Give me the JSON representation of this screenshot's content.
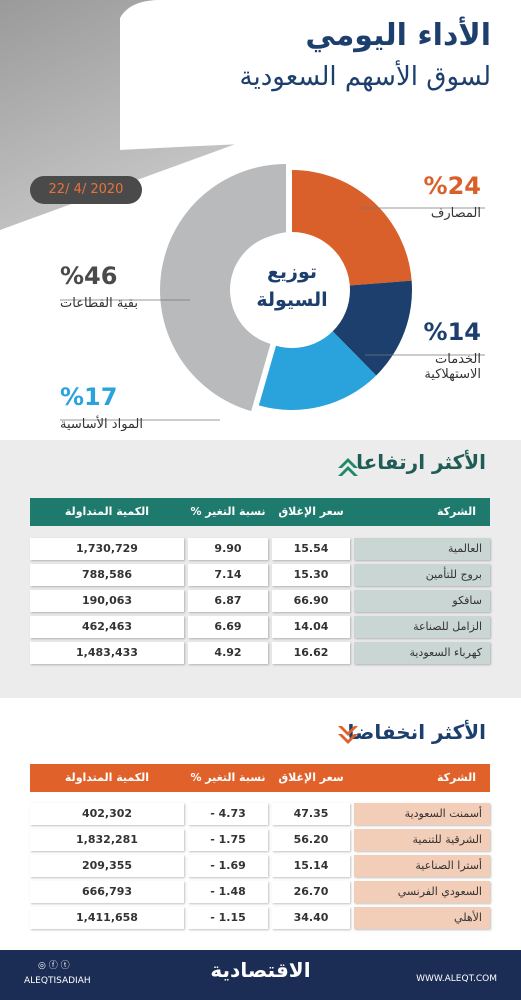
{
  "header": {
    "title": "الأداء اليومي",
    "subtitle": "لسوق الأسهم السعودية",
    "date": "22/ 4/ 2020"
  },
  "chart_data": {
    "type": "pie",
    "donut": true,
    "center_label": [
      "توزيع",
      "السيولة"
    ],
    "categories": [
      "المصارف",
      "الخدمات الاستهلاكية",
      "المواد الأساسية",
      "بقية القطاعات"
    ],
    "values": [
      24,
      14,
      17,
      46
    ],
    "value_labels": [
      "%24",
      "%14",
      "%17",
      "%46"
    ],
    "colors": [
      "#d9602a",
      "#1d3f6d",
      "#2aa3dc",
      "#b9babc"
    ]
  },
  "gainers": {
    "title": "الأكثر ارتفاعا",
    "columns": [
      "الشركة",
      "سعر الإغلاق",
      "نسبة التغير %",
      "الكمية المتداولة"
    ],
    "rows": [
      [
        "العالمية",
        "15.54",
        "9.90",
        "1,730,729"
      ],
      [
        "بروج للتأمين",
        "15.30",
        "7.14",
        "788,586"
      ],
      [
        "سافكو",
        "66.90",
        "6.87",
        "190,063"
      ],
      [
        "الزامل للصناعة",
        "14.04",
        "6.69",
        "462,463"
      ],
      [
        "كهرباء السعودية",
        "16.62",
        "4.92",
        "1,483,433"
      ]
    ]
  },
  "losers": {
    "title": "الأكثر انخفاضا",
    "columns": [
      "الشركة",
      "سعر الإغلاق",
      "نسبة التغير %",
      "الكمية المتداولة"
    ],
    "rows": [
      [
        "أسمنت السعودية",
        "47.35",
        "- 4.73",
        "402,302"
      ],
      [
        "الشرقية للتنمية",
        "56.20",
        "- 1.75",
        "1,832,281"
      ],
      [
        "أسترا الصناعية",
        "15.14",
        "- 1.69",
        "209,355"
      ],
      [
        "السعودي الفرنسي",
        "26.70",
        "- 1.48",
        "666,793"
      ],
      [
        "الأهلي",
        "34.40",
        "- 1.15",
        "1,411,658"
      ]
    ]
  },
  "footer": {
    "social": "ALEQTISADIAH",
    "logo": "الاقتصادية",
    "website": "WWW.ALEQT.COM"
  }
}
